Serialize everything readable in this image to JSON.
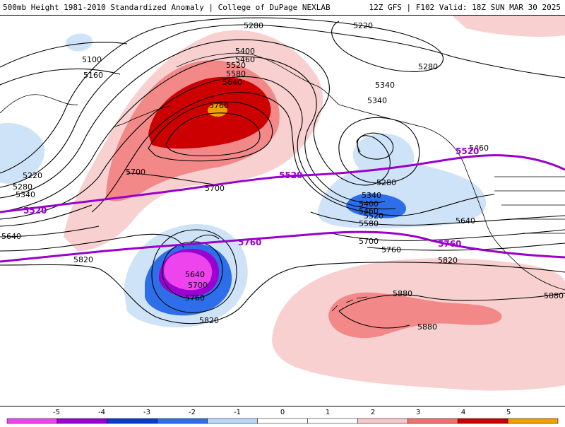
{
  "header": {
    "title_left": "500mb Height 1981-2010 Standardized Anomaly | College of DuPage NEXLAB",
    "title_right": "12Z GFS | F102 Valid: 18Z SUN MAR 30 2025"
  },
  "contour_labels": [
    {
      "text": "5280",
      "name": "contour-label-5280-north"
    },
    {
      "text": "5220",
      "name": "contour-label-5220-north"
    },
    {
      "text": "5280",
      "name": "contour-label-5280-northeast"
    },
    {
      "text": "5100",
      "name": "contour-label-5100"
    },
    {
      "text": "5160",
      "name": "contour-label-5160"
    },
    {
      "text": "5400",
      "name": "contour-label-5400-ridge"
    },
    {
      "text": "5460",
      "name": "contour-label-5460-ridge"
    },
    {
      "text": "5520",
      "name": "contour-label-5520-ridge"
    },
    {
      "text": "5580",
      "name": "contour-label-5580-ridge"
    },
    {
      "text": "5640",
      "name": "contour-label-5640-ridge"
    },
    {
      "text": "5760",
      "name": "contour-label-5760-ridge-core"
    },
    {
      "text": "5340",
      "name": "contour-label-5340-upper"
    },
    {
      "text": "5340",
      "name": "contour-label-5340-trough"
    },
    {
      "text": "5280",
      "name": "contour-label-5280-trough"
    },
    {
      "text": "5340",
      "name": "contour-label-5340-low"
    },
    {
      "text": "5400",
      "name": "contour-label-5400-low"
    },
    {
      "text": "5460",
      "name": "contour-label-5460-low"
    },
    {
      "text": "5520",
      "name": "contour-label-5520-low"
    },
    {
      "text": "5580",
      "name": "contour-label-5580-low"
    },
    {
      "text": "5640",
      "name": "contour-label-5640-coast"
    },
    {
      "text": "5700",
      "name": "contour-label-5700-low"
    },
    {
      "text": "5760",
      "name": "contour-label-5760-low"
    },
    {
      "text": "5820",
      "name": "contour-label-5820-east"
    },
    {
      "text": "5460",
      "name": "contour-label-5460-canada"
    },
    {
      "text": "5700",
      "name": "contour-label-5700-ridge-west"
    },
    {
      "text": "5700",
      "name": "contour-label-5700-ridge-south"
    },
    {
      "text": "5220",
      "name": "contour-label-5220-west"
    },
    {
      "text": "5280",
      "name": "contour-label-5280-west"
    },
    {
      "text": "5340",
      "name": "contour-label-5340-west"
    },
    {
      "text": "5640",
      "name": "contour-label-5640-west"
    },
    {
      "text": "5820",
      "name": "contour-label-5820-west"
    },
    {
      "text": "5640",
      "name": "contour-label-5640-cutoff"
    },
    {
      "text": "5700",
      "name": "contour-label-5700-cutoff"
    },
    {
      "text": "5760",
      "name": "contour-label-5760-cutoff"
    },
    {
      "text": "5820",
      "name": "contour-label-5820-cutoff"
    },
    {
      "text": "5880",
      "name": "contour-label-5880-hawaii"
    },
    {
      "text": "5880",
      "name": "contour-label-5880-south"
    },
    {
      "text": "5880",
      "name": "contour-label-5880-east"
    }
  ],
  "highlight_labels": [
    {
      "text": "5520",
      "name": "highlight-label-5520-west"
    },
    {
      "text": "5520",
      "name": "highlight-label-5520-central"
    },
    {
      "text": "5520",
      "name": "highlight-label-5520-east"
    },
    {
      "text": "5760",
      "name": "highlight-label-5760-central"
    },
    {
      "text": "5760",
      "name": "highlight-label-5760-east"
    }
  ],
  "colorbar": {
    "ticks": [
      "-5",
      "-4",
      "-3",
      "-2",
      "-1",
      "0",
      "1",
      "2",
      "3",
      "4",
      "5"
    ],
    "colors": [
      "#ee44ee",
      "#9a00d0",
      "#0a3cc8",
      "#2e6ee8",
      "#b8d8f8",
      "#ffffff",
      "#ffffff",
      "#f8c8c8",
      "#f07070",
      "#cc0000",
      "#f0a000"
    ]
  },
  "colors": {
    "anomaly_plus_1": "#f8d0d0",
    "anomaly_plus_2": "#f28888",
    "anomaly_plus_3": "#cc0000",
    "anomaly_plus_4": "#f0a000",
    "anomaly_minus_1": "#cfe3f8",
    "anomaly_minus_2": "#2e6ee8",
    "anomaly_minus_3": "#1a4ad8",
    "anomaly_minus_4": "#9a00d0",
    "anomaly_minus_5": "#ee44ee",
    "highlight_contour": "#9900cc"
  }
}
